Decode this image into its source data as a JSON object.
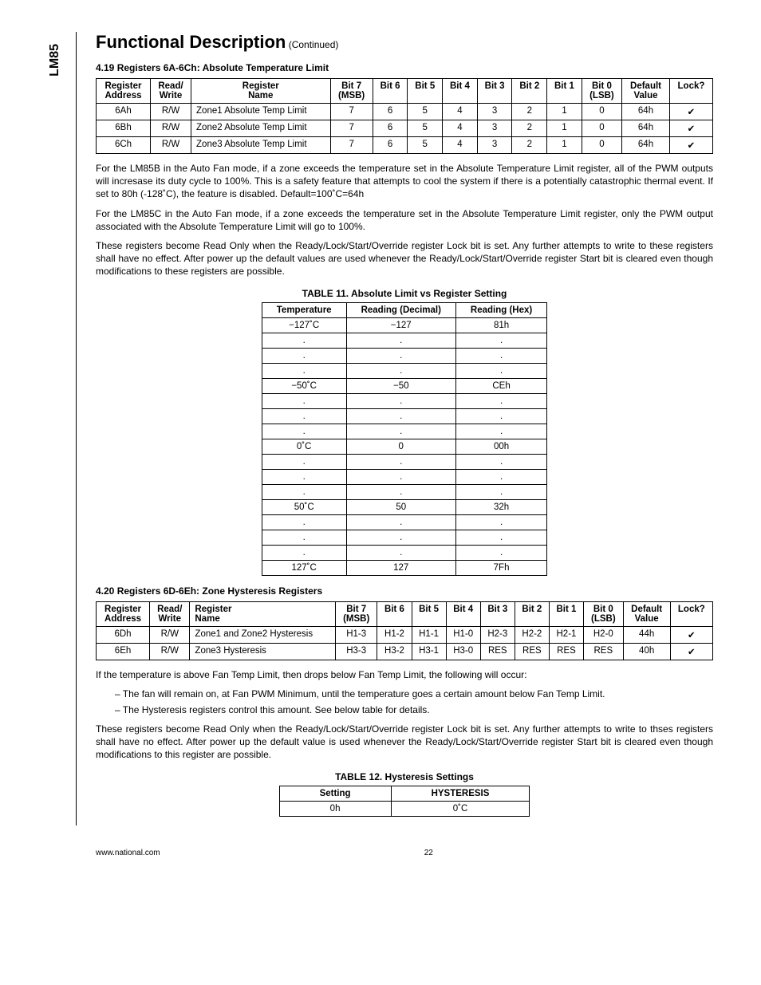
{
  "side_label": "LM85",
  "heading": "Functional Description",
  "continued": "(Continued)",
  "section419_title": "4.19 Registers 6A-6Ch: Absolute Temperature Limit",
  "table1": {
    "headers_row1": [
      "Register",
      "Read/",
      "Register",
      "Bit 7",
      "Bit 6",
      "Bit 5",
      "Bit 4",
      "Bit 3",
      "Bit 2",
      "Bit 1",
      "Bit 0",
      "Default",
      "Lock?"
    ],
    "headers_row2": [
      "Address",
      "Write",
      "Name",
      "(MSB)",
      "",
      "",
      "",
      "",
      "",
      "",
      "(LSB)",
      "Value",
      ""
    ],
    "rows": [
      [
        "6Ah",
        "R/W",
        "Zone1 Absolute Temp Limit",
        "7",
        "6",
        "5",
        "4",
        "3",
        "2",
        "1",
        "0",
        "64h",
        "✔"
      ],
      [
        "6Bh",
        "R/W",
        "Zone2 Absolute Temp Limit",
        "7",
        "6",
        "5",
        "4",
        "3",
        "2",
        "1",
        "0",
        "64h",
        "✔"
      ],
      [
        "6Ch",
        "R/W",
        "Zone3 Absolute Temp Limit",
        "7",
        "6",
        "5",
        "4",
        "3",
        "2",
        "1",
        "0",
        "64h",
        "✔"
      ]
    ]
  },
  "para1": "For the LM85B in the Auto Fan mode, if a zone exceeds the temperature set in the Absolute Temperature Limit register, all of the PWM outputs will incresase its duty cycle to 100%. This is a safety feature that attempts to cool the system if there is a potentially catastrophic thermal event. If set to 80h (-128˚C), the feature is disabled. Default=100˚C=64h",
  "para2": "For the LM85C in the Auto Fan mode, if a zone exceeds the temperature set in the Absolute Temperature Limit register, only the PWM output associated with the Absolute Temperature Limit will go to 100%.",
  "para3": "These registers become Read Only when the Ready/Lock/Start/Override register Lock bit is set. Any further attempts to write to these registers shall have no effect. After power up the default values are used whenever the Ready/Lock/Start/Override register Start bit is cleared even though modifications to these registers are possible.",
  "table11_title": "TABLE 11. Absolute Limit vs Register Setting",
  "table11": {
    "headers": [
      "Temperature",
      "Reading (Decimal)",
      "Reading (Hex)"
    ],
    "rows": [
      [
        "−127˚C",
        "−127",
        "81h"
      ],
      [
        ".",
        ".",
        "."
      ],
      [
        ".",
        ".",
        "."
      ],
      [
        ".",
        ".",
        "."
      ],
      [
        "−50˚C",
        "−50",
        "CEh"
      ],
      [
        ".",
        ".",
        "."
      ],
      [
        ".",
        ".",
        "."
      ],
      [
        ".",
        ".",
        "."
      ],
      [
        "0˚C",
        "0",
        "00h"
      ],
      [
        ".",
        ".",
        "."
      ],
      [
        ".",
        ".",
        "."
      ],
      [
        ".",
        ".",
        "."
      ],
      [
        "50˚C",
        "50",
        "32h"
      ],
      [
        ".",
        ".",
        "."
      ],
      [
        ".",
        ".",
        "."
      ],
      [
        ".",
        ".",
        "."
      ],
      [
        "127˚C",
        "127",
        "7Fh"
      ]
    ]
  },
  "section420_title": "4.20 Registers 6D-6Eh: Zone Hysteresis Registers",
  "table2": {
    "headers_row1": [
      "Register",
      "Read/",
      "Register",
      "Bit 7",
      "Bit 6",
      "Bit 5",
      "Bit 4",
      "Bit 3",
      "Bit 2",
      "Bit 1",
      "Bit 0",
      "Default",
      "Lock?"
    ],
    "headers_row2": [
      "Address",
      "Write",
      "Name",
      "(MSB)",
      "",
      "",
      "",
      "",
      "",
      "",
      "(LSB)",
      "Value",
      ""
    ],
    "rows": [
      [
        "6Dh",
        "R/W",
        "Zone1 and Zone2 Hysteresis",
        "H1-3",
        "H1-2",
        "H1-1",
        "H1-0",
        "H2-3",
        "H2-2",
        "H2-1",
        "H2-0",
        "44h",
        "✔"
      ],
      [
        "6Eh",
        "R/W",
        "Zone3 Hysteresis",
        "H3-3",
        "H3-2",
        "H3-1",
        "H3-0",
        "RES",
        "RES",
        "RES",
        "RES",
        "40h",
        "✔"
      ]
    ]
  },
  "para4": "If the temperature is above Fan Temp Limit, then drops below Fan Temp Limit, the following will occur:",
  "bullet1": "– The fan will remain on, at Fan PWM Minimum, until the temperature goes a certain amount below Fan Temp Limit.",
  "bullet2": "– The Hysteresis registers control this amount. See below table for details.",
  "para5": "These registers become Read Only when the Ready/Lock/Start/Override register Lock bit is set. Any further attempts to write to thses registers shall have no effect. After power up the default value is used whenever the Ready/Lock/Start/Override register Start bit is cleared even though modifications to this register are possible.",
  "table12_title": "TABLE 12. Hysteresis Settings",
  "table12": {
    "headers": [
      "Setting",
      "HYSTERESIS"
    ],
    "rows": [
      [
        "0h",
        "0˚C"
      ]
    ]
  },
  "footer_left": "www.national.com",
  "footer_center": "22"
}
